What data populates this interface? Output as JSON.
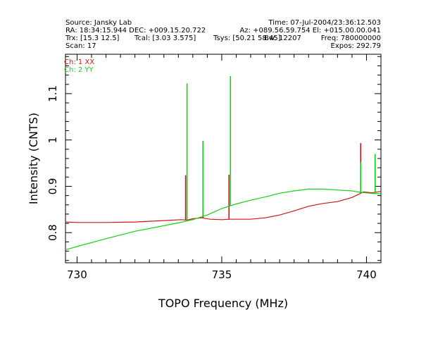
{
  "header": {
    "source": "Source: Jansky Lab",
    "time": "Time: 07-Jul-2004/23:36:12.503",
    "ra_dec": "RA: 18:34:15.944 DEC: +009.15.20.722",
    "az_el": "Az: +089.56.59.754 El: +015.00.00.041",
    "trx": "Trx: [15.3 12.5]",
    "tcal": "Tcal: [3.03 3.575]",
    "tsys": "Tsys: [50.21 58.45]",
    "bw": "Bw: 12207",
    "freq": "Freq: 780000000",
    "scan": "Scan: 17",
    "expos": "Expos: 292.79"
  },
  "colors": {
    "ch1": "#d21414",
    "ch2": "#14d214"
  },
  "chart_data": {
    "type": "line",
    "xlabel": "TOPO Frequency (MHz)",
    "ylabel": "Intensity (CNTS)",
    "xlim": [
      729.6,
      740.5
    ],
    "ylim": [
      0.735,
      1.185
    ],
    "xticks": [
      730,
      735,
      740
    ],
    "yticks": [
      0.8,
      0.9,
      1,
      1.1
    ],
    "xtick_labels": [
      "730",
      "735",
      "740"
    ],
    "ytick_labels": [
      "0.8",
      "0.9",
      "1",
      "1.1"
    ],
    "grid": false,
    "legend_position": "top-left",
    "series": [
      {
        "name": "Ch: 1 XX",
        "color": "#d21414",
        "x": [
          729.6,
          730.0,
          731.0,
          732.0,
          733.0,
          733.6,
          733.8,
          734.0,
          734.3,
          734.6,
          735.0,
          735.3,
          735.6,
          736.0,
          736.5,
          737.0,
          737.5,
          738.0,
          738.5,
          739.0,
          739.5,
          739.9,
          740.2,
          740.5
        ],
        "y": [
          0.823,
          0.822,
          0.822,
          0.823,
          0.826,
          0.828,
          0.827,
          0.83,
          0.832,
          0.829,
          0.828,
          0.829,
          0.829,
          0.829,
          0.832,
          0.838,
          0.847,
          0.857,
          0.863,
          0.867,
          0.876,
          0.888,
          0.886,
          0.889
        ],
        "spikes": [
          {
            "x": 733.75,
            "y": 0.924
          },
          {
            "x": 734.35,
            "y": 0.836
          },
          {
            "x": 735.25,
            "y": 0.925
          },
          {
            "x": 739.8,
            "y": 0.993
          },
          {
            "x": 740.3,
            "y": 0.955
          }
        ]
      },
      {
        "name": "Ch: 2 YY",
        "color": "#14d214",
        "x": [
          729.6,
          730.0,
          731.0,
          732.0,
          733.0,
          733.5,
          734.0,
          734.5,
          735.0,
          735.5,
          736.0,
          736.5,
          737.0,
          737.5,
          738.0,
          738.5,
          739.0,
          739.5,
          739.8,
          740.1,
          740.5
        ],
        "y": [
          0.763,
          0.77,
          0.787,
          0.803,
          0.815,
          0.821,
          0.828,
          0.838,
          0.852,
          0.862,
          0.87,
          0.877,
          0.885,
          0.89,
          0.894,
          0.894,
          0.892,
          0.89,
          0.887,
          0.885,
          0.884
        ],
        "spikes": [
          {
            "x": 733.8,
            "y": 1.122
          },
          {
            "x": 734.35,
            "y": 0.998
          },
          {
            "x": 735.3,
            "y": 1.138
          },
          {
            "x": 739.8,
            "y": 0.952
          },
          {
            "x": 740.3,
            "y": 0.97
          }
        ]
      }
    ]
  }
}
